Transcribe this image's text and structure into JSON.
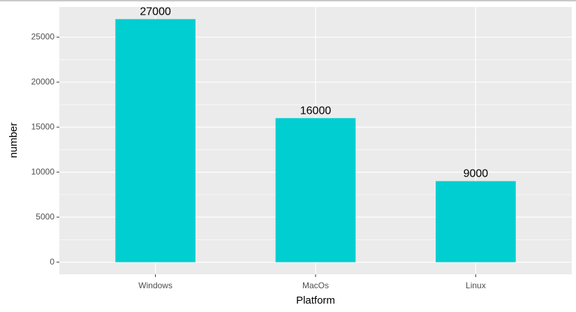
{
  "chart_data": {
    "type": "bar",
    "categories": [
      "Windows",
      "MacOs",
      "Linux"
    ],
    "values": [
      27000,
      16000,
      9000
    ],
    "color": "#00ced1",
    "xlabel": "Platform",
    "ylabel": "number",
    "ylim": [
      -1350,
      28350
    ],
    "yticks": [
      0,
      5000,
      10000,
      15000,
      20000,
      25000
    ],
    "grid": true
  }
}
